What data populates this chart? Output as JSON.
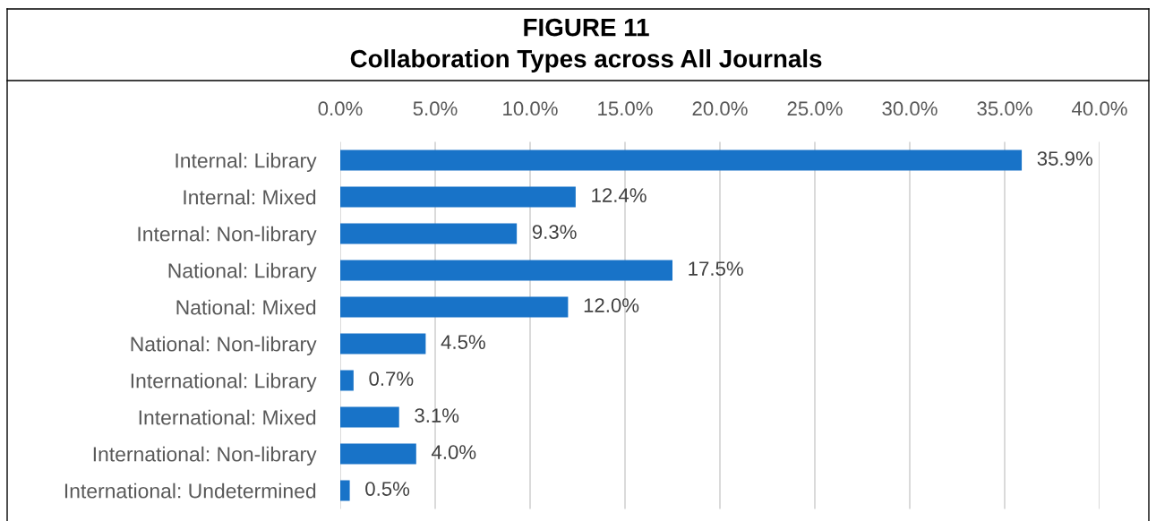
{
  "chart_data": {
    "type": "bar",
    "orientation": "horizontal",
    "title": "FIGURE 11",
    "subtitle": "Collaboration Types across All Journals",
    "categories": [
      "Internal: Library",
      "Internal: Mixed",
      "Internal: Non-library",
      "National: Library",
      "National: Mixed",
      "National: Non-library",
      "International: Library",
      "International: Mixed",
      "International: Non-library",
      "International: Undetermined"
    ],
    "values": [
      35.9,
      12.4,
      9.3,
      17.5,
      12.0,
      4.5,
      0.7,
      3.1,
      4.0,
      0.5
    ],
    "value_labels": [
      "35.9%",
      "12.4%",
      "9.3%",
      "17.5%",
      "12.0%",
      "4.5%",
      "0.7%",
      "3.1%",
      "4.0%",
      "0.5%"
    ],
    "color": "#1873c8",
    "xlim": [
      0,
      40
    ],
    "xticks": [
      {
        "value": 0,
        "label": "0.0%"
      },
      {
        "value": 5,
        "label": "5.0%"
      },
      {
        "value": 10,
        "label": "10.0%"
      },
      {
        "value": 15,
        "label": "15.0%"
      },
      {
        "value": 20,
        "label": "20.0%"
      },
      {
        "value": 25,
        "label": "25.0%"
      },
      {
        "value": 30,
        "label": "30.0%"
      },
      {
        "value": 35,
        "label": "35.0%"
      },
      {
        "value": 40,
        "label": "40.0%"
      }
    ],
    "grid": "x"
  }
}
